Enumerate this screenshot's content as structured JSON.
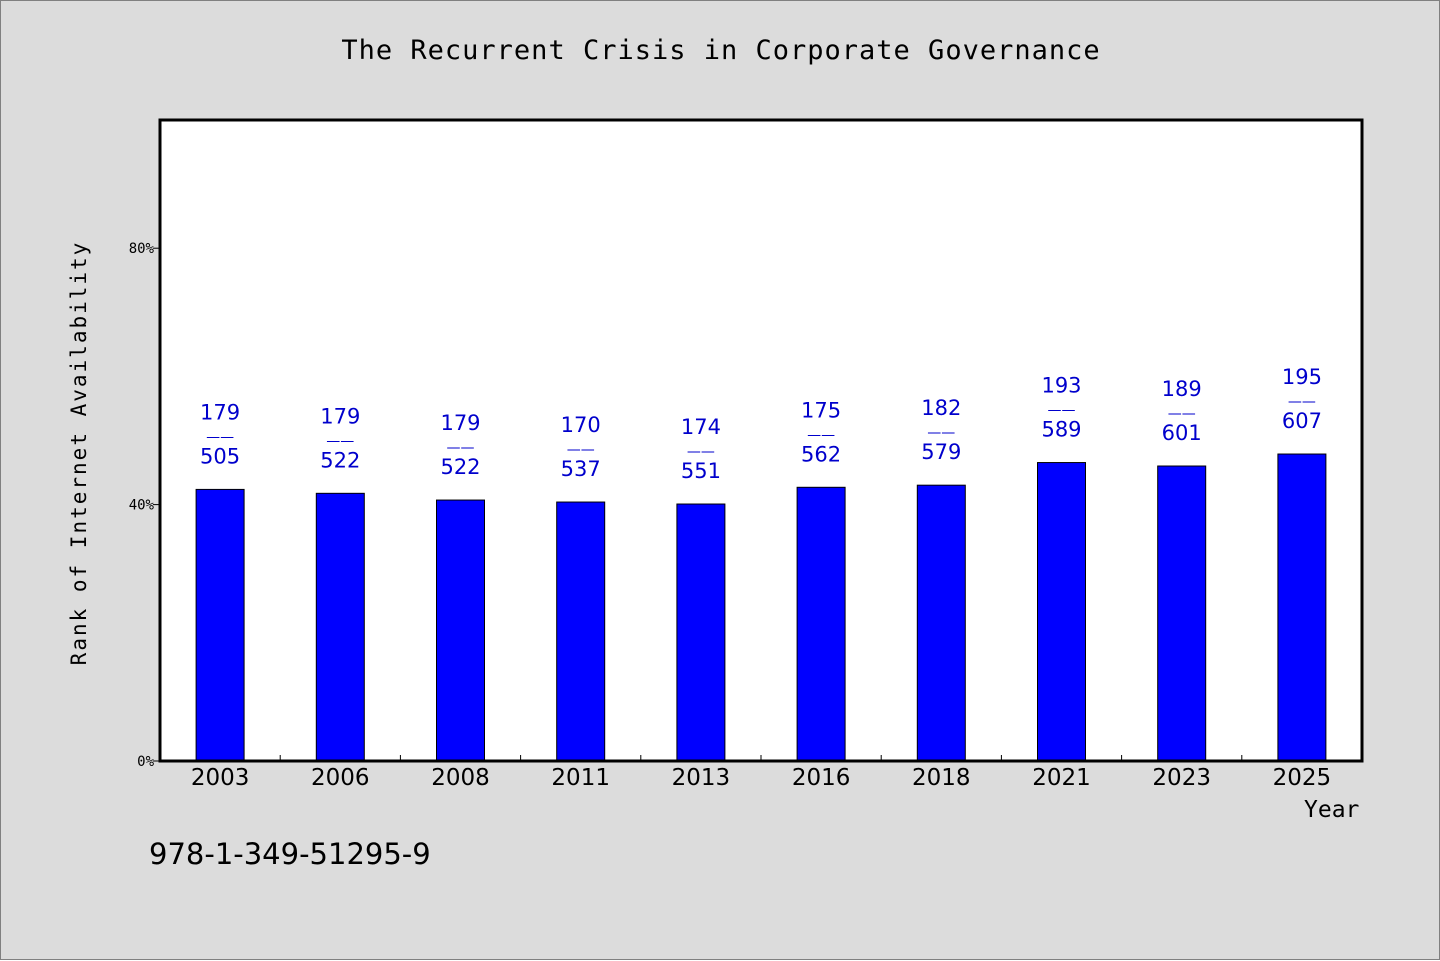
{
  "chart_data": {
    "type": "bar",
    "title": "The Recurrent Crisis in Corporate Governance",
    "xlabel": "Year",
    "ylabel": "Rank of Internet Availability",
    "categories": [
      "2003",
      "2006",
      "2008",
      "2011",
      "2013",
      "2016",
      "2018",
      "2021",
      "2023",
      "2025"
    ],
    "values": [
      0.4237,
      0.4176,
      0.4071,
      0.404,
      0.4009,
      0.427,
      0.4303,
      0.4656,
      0.4602,
      0.4789
    ],
    "data_labels": [
      {
        "top": "179",
        "sep": "——",
        "bottom": "505"
      },
      {
        "top": "179",
        "sep": "——",
        "bottom": "522"
      },
      {
        "top": "179",
        "sep": "——",
        "bottom": "522"
      },
      {
        "top": "170",
        "sep": "——",
        "bottom": "537"
      },
      {
        "top": "174",
        "sep": "——",
        "bottom": "551"
      },
      {
        "top": "175",
        "sep": "——",
        "bottom": "562"
      },
      {
        "top": "182",
        "sep": "——",
        "bottom": "579"
      },
      {
        "top": "193",
        "sep": "——",
        "bottom": "589"
      },
      {
        "top": "189",
        "sep": "——",
        "bottom": "601"
      },
      {
        "top": "195",
        "sep": "——",
        "bottom": "607"
      }
    ],
    "yticks": [
      {
        "value": 0,
        "label": "0%"
      },
      {
        "value": 0.4,
        "label": "40%"
      },
      {
        "value": 0.8,
        "label": "80%"
      }
    ],
    "ylim": [
      0,
      1.0
    ],
    "grid": false,
    "legend": "none",
    "bar_color": "#0000ff",
    "label_color": "#0000cc"
  },
  "footer": {
    "isbn": "978-1-349-51295-9"
  }
}
